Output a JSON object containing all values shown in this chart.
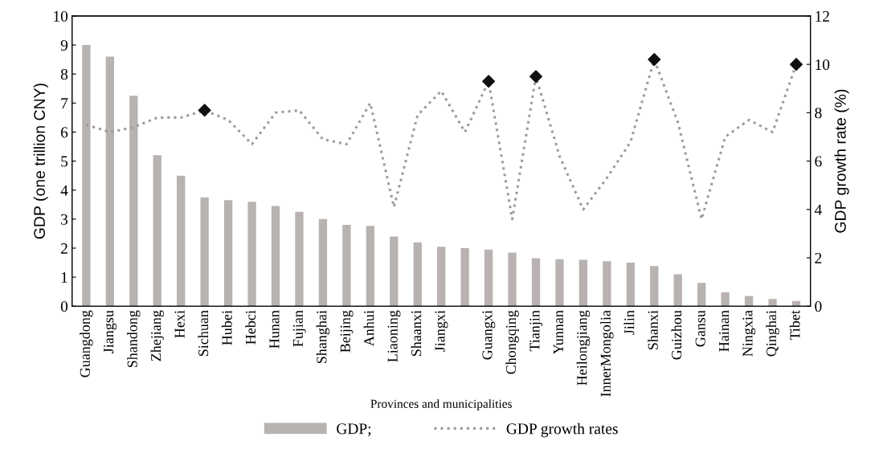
{
  "chart_data": {
    "type": "bar",
    "xlabel": "Provinces and municipalities",
    "ylabel": "GDP (one trillion CNY)",
    "y2label": "GDP growth rate (%)",
    "categories": [
      "Guangdong",
      "Jiangsu",
      "Shandong",
      "Zhejiang",
      "Hexi",
      "Sichuan",
      "Hubei",
      "Hebci",
      "Hunan",
      "Fujian",
      "Shanghai",
      "Beijing",
      "Anhui",
      "Liaoning",
      "Shaanxi",
      "Jiangxi",
      null,
      "Guangxi",
      "Chongqing",
      "Tianjin",
      "Yunnan",
      "Heilongjiang",
      "InnerMongolia",
      "Jilin",
      "Shanxi",
      "Guizhou",
      "Gansu",
      "Hainan",
      "Ningxia",
      "Qinghai",
      "Tibet"
    ],
    "series": [
      {
        "name": "GDP;",
        "color": "#b8b2b0",
        "values": [
          9.0,
          8.6,
          7.25,
          5.2,
          4.5,
          3.75,
          3.65,
          3.6,
          3.45,
          3.25,
          3.0,
          2.8,
          2.77,
          2.4,
          2.2,
          2.05,
          2.0,
          1.95,
          1.85,
          1.65,
          1.62,
          1.6,
          1.55,
          1.5,
          1.38,
          1.1,
          0.8,
          0.48,
          0.35,
          0.25,
          0.18
        ]
      },
      {
        "name": "GDP growth rates",
        "type": "line",
        "axis": "y2",
        "color": "#a09a9a",
        "line_style": "dotted",
        "marker": "none",
        "values": [
          7.5,
          7.2,
          7.4,
          7.8,
          7.8,
          8.1,
          7.7,
          6.7,
          8.0,
          8.1,
          6.9,
          6.7,
          8.4,
          4.1,
          7.9,
          8.9,
          7.2,
          9.3,
          3.6,
          9.5,
          6.2,
          4.0,
          5.3,
          6.8,
          10.2,
          7.6,
          3.6,
          7.0,
          7.7,
          7.2,
          10.0
        ]
      },
      {
        "type": "scatter",
        "axis": "y2",
        "color": "#111111",
        "marker": "diamond",
        "x": [
          "Sichuan",
          "Guangxi",
          "Tianjin",
          "Shanxi",
          "Tibet"
        ],
        "values": [
          8.1,
          9.3,
          9.5,
          10.2,
          10.0
        ]
      }
    ],
    "ylim": [
      0,
      10
    ],
    "yticks": [
      0,
      1,
      2,
      3,
      4,
      5,
      6,
      7,
      8,
      9,
      10
    ],
    "y2lim": [
      0,
      12
    ],
    "y2ticks": [
      0,
      2,
      4,
      6,
      8,
      10,
      12
    ],
    "grid": false,
    "legend": "bottom"
  }
}
